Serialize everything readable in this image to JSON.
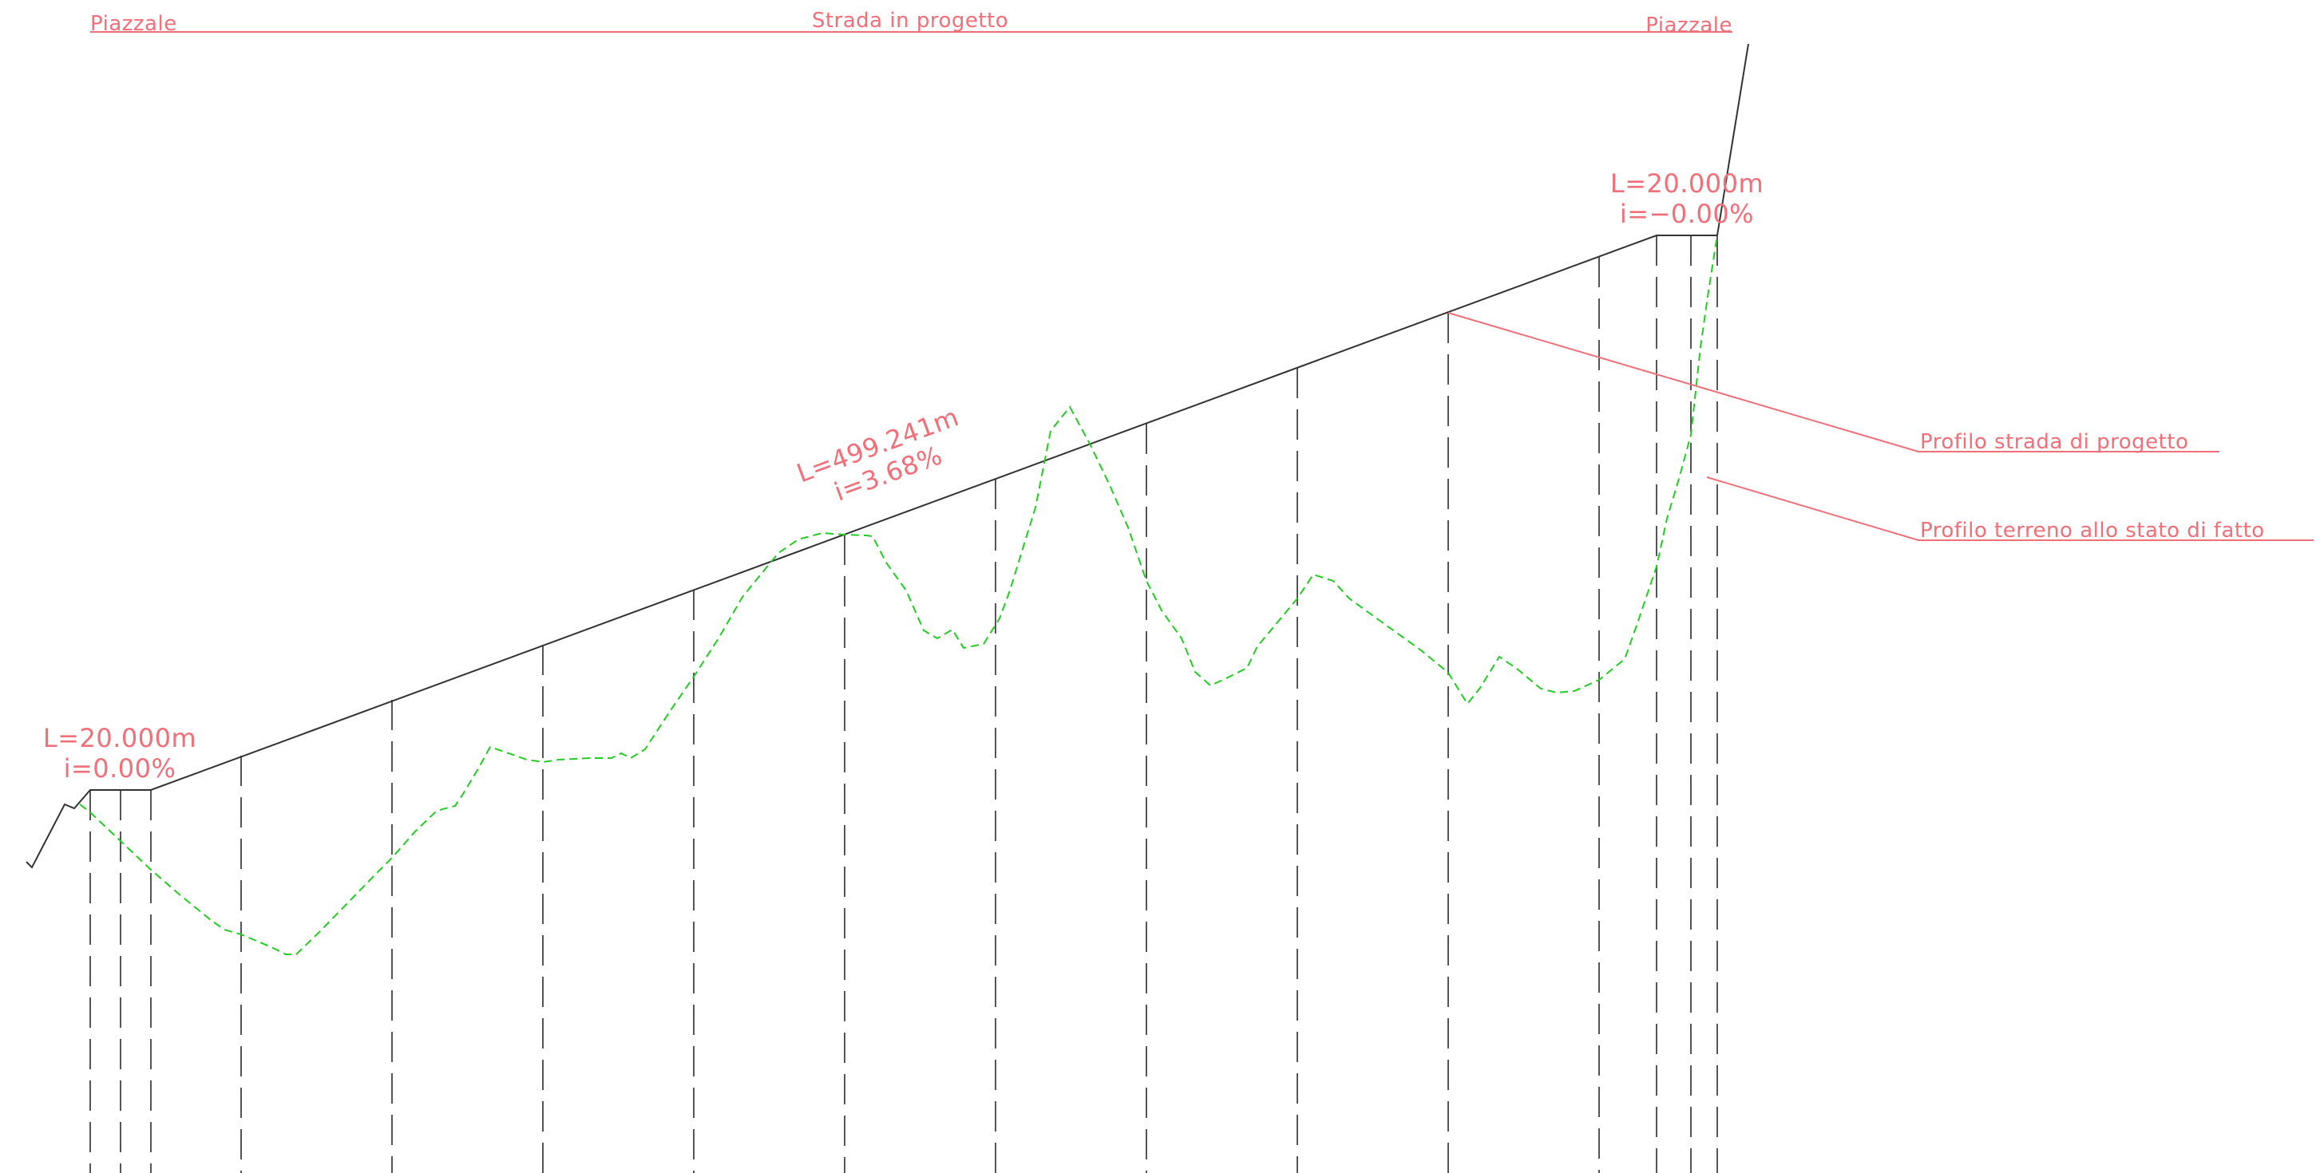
{
  "colors": {
    "background": "#ffffff",
    "annotation": "#f0707a",
    "project_profile": "#333333",
    "terrain_profile": "#22cc22",
    "section_lines": "#555555"
  },
  "header": {
    "left_label": "Piazzale",
    "center_label": "Strada in progetto",
    "right_label": "Piazzale"
  },
  "segments": {
    "start": {
      "length": "L=20.000m",
      "slope": "i=0.00%"
    },
    "main": {
      "length": "L=499.241m",
      "slope": "i=3.68%"
    },
    "end": {
      "length": "L=20.000m",
      "slope": "i=−0.00%"
    }
  },
  "legend": {
    "project_road": "Profilo strada di progetto",
    "existing_terrain": "Profilo terreno allo stato di fatto"
  }
}
